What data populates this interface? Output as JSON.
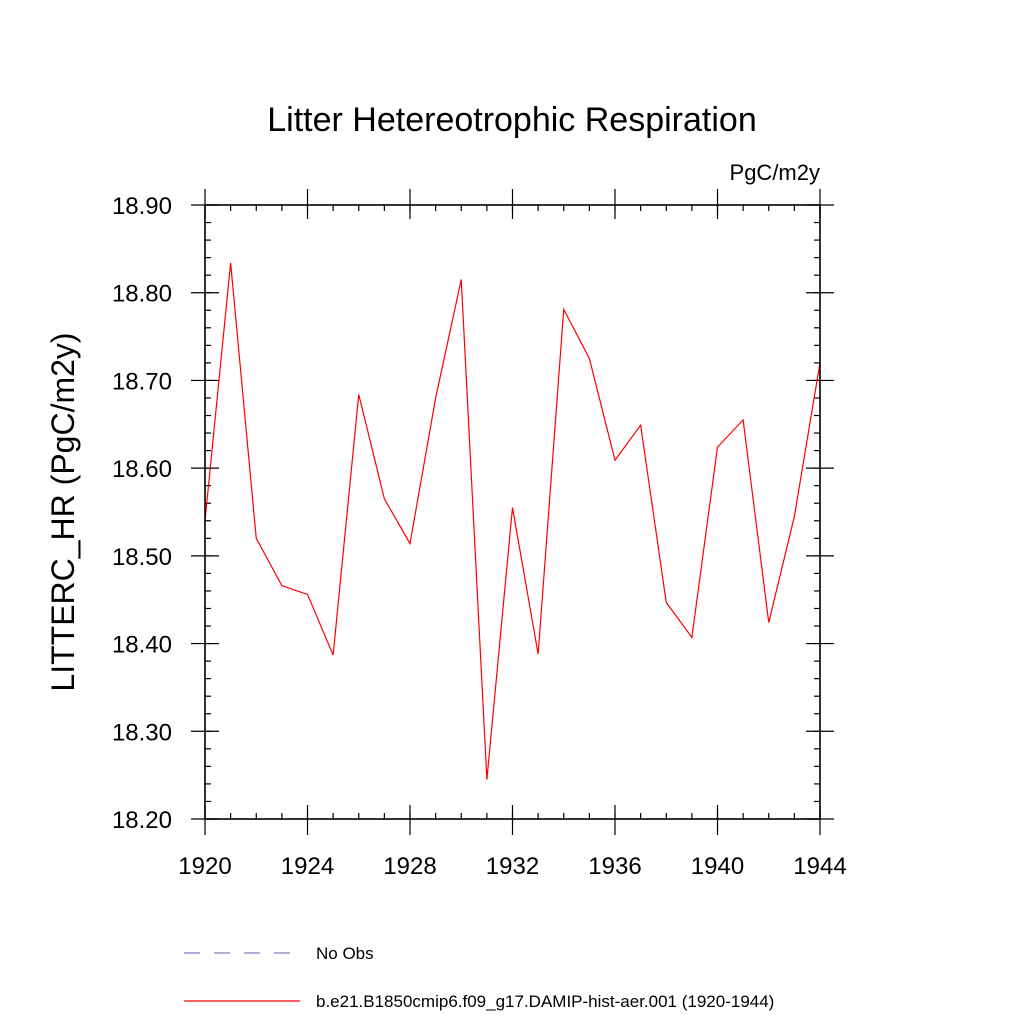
{
  "chart_data": {
    "type": "line",
    "title": "Litter Hetereotrophic Respiration",
    "units": "PgC/m2y",
    "ylabel": "LITTERC_HR  (PgC/m2y)",
    "xlabel": "",
    "xlim": [
      1920,
      1944
    ],
    "ylim": [
      18.2,
      18.9
    ],
    "x_ticks": [
      1920,
      1924,
      1928,
      1932,
      1936,
      1940,
      1944
    ],
    "x_tick_labels": [
      "1920",
      "1924",
      "1928",
      "1932",
      "1936",
      "1940",
      "1944"
    ],
    "y_ticks": [
      18.2,
      18.3,
      18.4,
      18.5,
      18.6,
      18.7,
      18.8,
      18.9
    ],
    "y_tick_labels": [
      "18.20",
      "18.30",
      "18.40",
      "18.50",
      "18.60",
      "18.70",
      "18.80",
      "18.90"
    ],
    "x_minor_step": 1,
    "y_minor_step": 0.02,
    "grid": false,
    "legend_position": "bottom",
    "series": [
      {
        "name": "No Obs",
        "color": "#8080c0",
        "dash": "dashed",
        "x": [],
        "y": []
      },
      {
        "name": "b.e21.B1850cmip6.f09_g17.DAMIP-hist-aer.001 (1920-1944)",
        "color": "#ff0000",
        "dash": "solid",
        "x": [
          1920,
          1921,
          1922,
          1923,
          1924,
          1925,
          1926,
          1927,
          1928,
          1929,
          1930,
          1931,
          1932,
          1933,
          1934,
          1935,
          1936,
          1937,
          1938,
          1939,
          1940,
          1941,
          1942,
          1943,
          1944
        ],
        "y": [
          18.54,
          18.834,
          18.52,
          18.466,
          18.456,
          18.387,
          18.684,
          18.565,
          18.514,
          18.68,
          18.815,
          18.245,
          18.555,
          18.388,
          18.781,
          18.725,
          18.609,
          18.649,
          18.447,
          18.407,
          18.624,
          18.655,
          18.424,
          18.545,
          18.72
        ]
      }
    ]
  }
}
